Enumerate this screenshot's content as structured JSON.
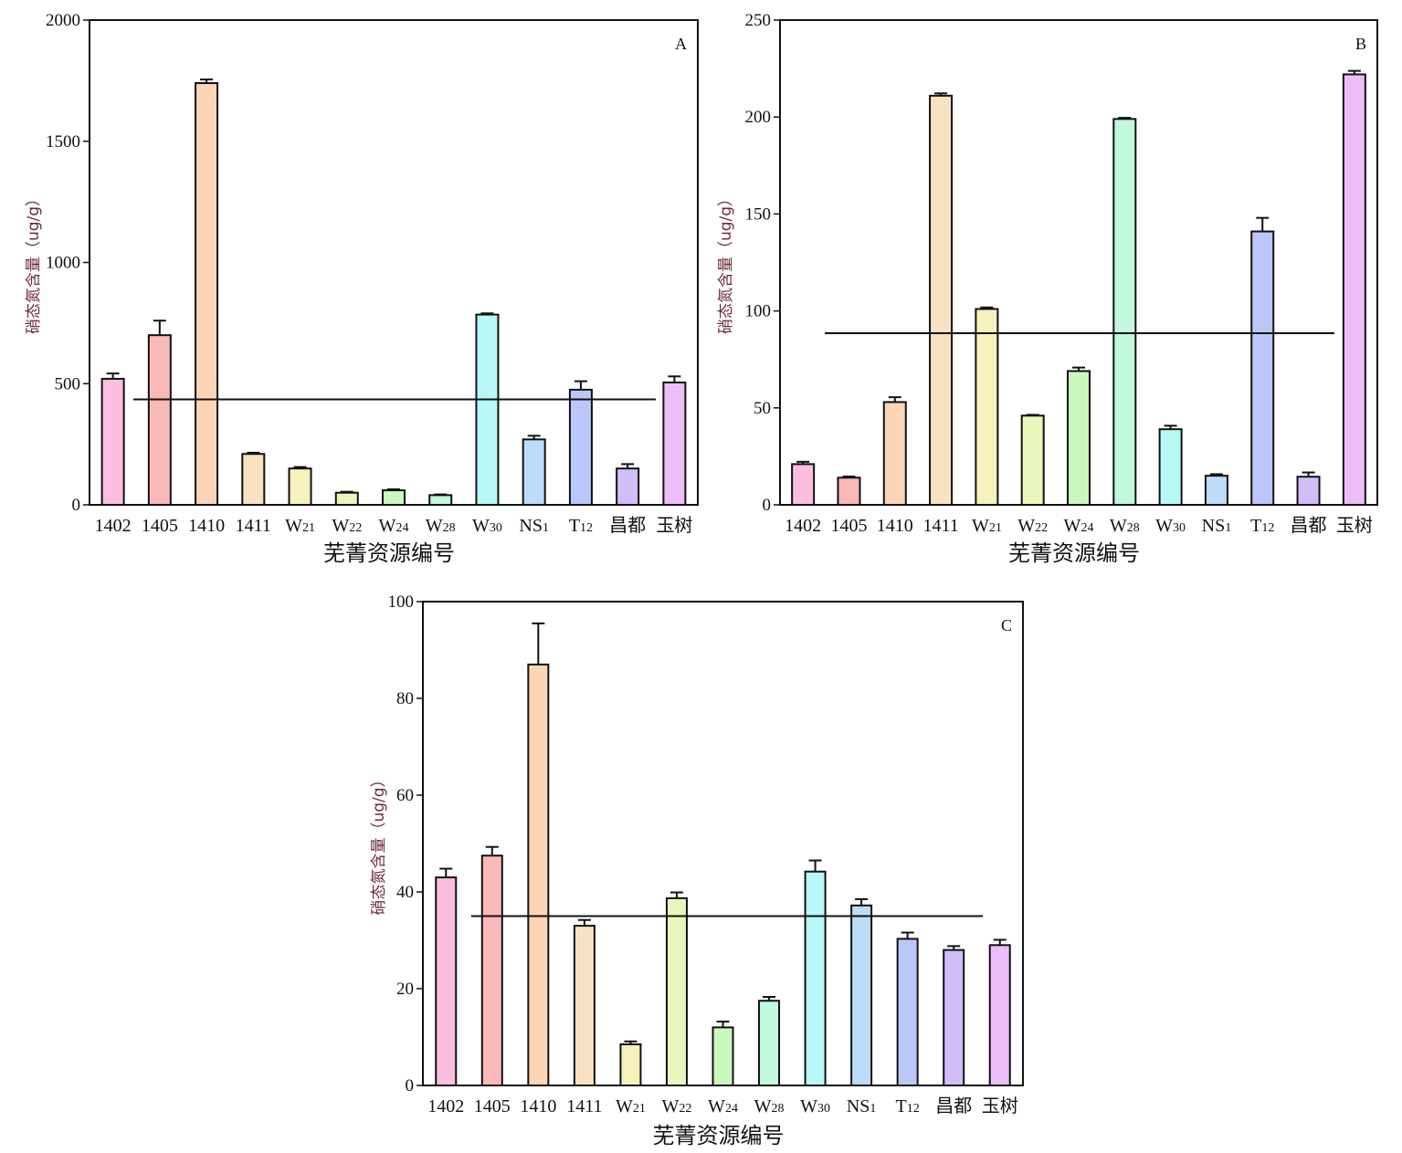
{
  "chart_data": [
    {
      "type": "bar",
      "panel": "A",
      "xlabel": "芜菁资源编号",
      "ylabel": "硝态氮含量（ug/g）",
      "ylim": [
        0,
        2000
      ],
      "yticks": [
        0,
        500,
        1000,
        1500,
        2000
      ],
      "categories": [
        {
          "main": "1402",
          "sub": ""
        },
        {
          "main": "1405",
          "sub": ""
        },
        {
          "main": "1410",
          "sub": ""
        },
        {
          "main": "1411",
          "sub": ""
        },
        {
          "main": "W",
          "sub": "21"
        },
        {
          "main": "W",
          "sub": "22"
        },
        {
          "main": "W",
          "sub": "24"
        },
        {
          "main": "W",
          "sub": "28"
        },
        {
          "main": "W",
          "sub": "30"
        },
        {
          "main": "NS",
          "sub": "1"
        },
        {
          "main": "T",
          "sub": "12"
        },
        {
          "main": "昌都",
          "sub": ""
        },
        {
          "main": "玉树",
          "sub": ""
        }
      ],
      "values": [
        520,
        700,
        1740,
        210,
        150,
        50,
        60,
        40,
        785,
        270,
        475,
        150,
        505
      ],
      "errors": [
        22,
        60,
        15,
        5,
        6,
        4,
        4,
        3,
        5,
        15,
        35,
        18,
        25
      ],
      "reference_line": 435,
      "colors": [
        "#fbbde0",
        "#f9b9b9",
        "#fbd5b6",
        "#f9e2c2",
        "#f7f1bd",
        "#e9f7bd",
        "#c9f7be",
        "#c2f8de",
        "#b8f8f6",
        "#bddcf9",
        "#bcc7f9",
        "#d3bdf8",
        "#edbdf9"
      ]
    },
    {
      "type": "bar",
      "panel": "B",
      "xlabel": "芜菁资源编号",
      "ylabel": "硝态氮含量（ug/g）",
      "ylim": [
        0,
        250
      ],
      "yticks": [
        0,
        50,
        100,
        150,
        200,
        250
      ],
      "categories": [
        {
          "main": "1402",
          "sub": ""
        },
        {
          "main": "1405",
          "sub": ""
        },
        {
          "main": "1410",
          "sub": ""
        },
        {
          "main": "1411",
          "sub": ""
        },
        {
          "main": "W",
          "sub": "21"
        },
        {
          "main": "W",
          "sub": "22"
        },
        {
          "main": "W",
          "sub": "24"
        },
        {
          "main": "W",
          "sub": "28"
        },
        {
          "main": "W",
          "sub": "30"
        },
        {
          "main": "NS",
          "sub": "1"
        },
        {
          "main": "T",
          "sub": "12"
        },
        {
          "main": "昌都",
          "sub": ""
        },
        {
          "main": "玉树",
          "sub": ""
        }
      ],
      "values": [
        21,
        14,
        53,
        211,
        101,
        46,
        69,
        199,
        39,
        15,
        141,
        14.5,
        222
      ],
      "errors": [
        1.2,
        0.6,
        2.5,
        1.2,
        0.8,
        0.4,
        1.8,
        0.6,
        1.8,
        0.8,
        7,
        2.2,
        1.8
      ],
      "reference_line": 88.5,
      "colors": [
        "#fbbde0",
        "#f9b9b9",
        "#fbd5b6",
        "#f9e2c2",
        "#f7f1bd",
        "#e9f7bd",
        "#c9f7be",
        "#c2f8de",
        "#b8f8f6",
        "#bddcf9",
        "#bcc7f9",
        "#d3bdf8",
        "#edbdf9"
      ]
    },
    {
      "type": "bar",
      "panel": "C",
      "xlabel": "芜菁资源编号",
      "ylabel": "硝态氮含量（ug/g）",
      "ylim": [
        0,
        100
      ],
      "yticks": [
        0,
        20,
        40,
        60,
        80,
        100
      ],
      "categories": [
        {
          "main": "1402",
          "sub": ""
        },
        {
          "main": "1405",
          "sub": ""
        },
        {
          "main": "1410",
          "sub": ""
        },
        {
          "main": "1411",
          "sub": ""
        },
        {
          "main": "W",
          "sub": "21"
        },
        {
          "main": "W",
          "sub": "22"
        },
        {
          "main": "W",
          "sub": "24"
        },
        {
          "main": "W",
          "sub": "28"
        },
        {
          "main": "W",
          "sub": "30"
        },
        {
          "main": "NS",
          "sub": "1"
        },
        {
          "main": "T",
          "sub": "12"
        },
        {
          "main": "昌都",
          "sub": ""
        },
        {
          "main": "玉树",
          "sub": ""
        }
      ],
      "values": [
        43,
        47.5,
        87,
        33,
        8.5,
        38.7,
        12,
        17.5,
        44.2,
        37.2,
        30.3,
        28,
        29
      ],
      "errors": [
        1.8,
        1.8,
        8.5,
        1.2,
        0.6,
        1.2,
        1.2,
        0.8,
        2.3,
        1.3,
        1.3,
        0.8,
        1.1
      ],
      "reference_line": 35,
      "colors": [
        "#fbbde0",
        "#f9b9b9",
        "#fbd5b6",
        "#f9e2c2",
        "#f7f1bd",
        "#e9f7bd",
        "#c9f7be",
        "#c2f8de",
        "#b8f8f6",
        "#bddcf9",
        "#bcc7f9",
        "#d3bdf8",
        "#edbdf9"
      ]
    }
  ]
}
